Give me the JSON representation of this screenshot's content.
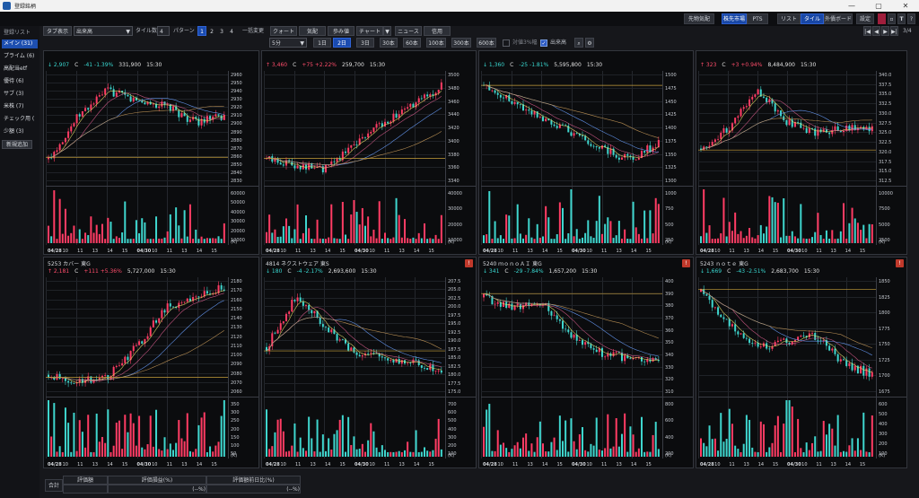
{
  "window": {
    "title": "登録銘柄",
    "minimize": "—",
    "maximize": "▢",
    "close": "✕"
  },
  "topbar": {
    "buttons": [
      "先物気配",
      "株先市場",
      "PTS",
      "リスト",
      "タイル",
      "外債ボード",
      "設定"
    ],
    "active": [
      "株先市場",
      "タイル"
    ],
    "icons": [
      "pen-icon",
      "mail-icon",
      "text-icon",
      "help-icon"
    ]
  },
  "sidebar": {
    "header": "登録リスト",
    "items": [
      "メイン (31)",
      "プライム (6)",
      "高配当etf",
      "優待 (6)",
      "サブ (3)",
      "米株 (7)",
      "チェック用 (",
      "少額 (3)"
    ],
    "active_index": 0,
    "add_button": "新規追加"
  },
  "toolbar": {
    "tab_display": "タブ表示",
    "volume_select": "出来高",
    "tile_count_label": "タイル数",
    "tile_count": "4",
    "pattern_label": "パターン",
    "patterns": [
      "1",
      "2",
      "3",
      "4"
    ],
    "active_pattern": "1",
    "bulk_change": "一括変更",
    "bulk_buttons": [
      "クォート",
      "気配",
      "歩み値",
      "チャート",
      "ニュース",
      "信用"
    ],
    "page_indicator": "3/4",
    "interval_select": "5分",
    "spans": [
      "1日",
      "2日",
      "3日",
      "30本",
      "60本",
      "100本",
      "300本",
      "600本"
    ],
    "active_span": "2日",
    "pct_label": "対値3%幅",
    "volume_check": "出来高"
  },
  "panels": [
    {
      "code": "",
      "name": "",
      "market": "",
      "price": "2,907",
      "mark": "C",
      "change": "-41",
      "pct": "-1.39%",
      "volume": "331,900",
      "time": "15:30",
      "dir": "down",
      "alert": false,
      "yticks": [
        "2960",
        "2950",
        "2940",
        "2930",
        "2920",
        "2910",
        "2900",
        "2890",
        "2880",
        "2870",
        "2860",
        "2850",
        "2840",
        "2830"
      ],
      "vticks": [
        "60000",
        "50000",
        "40000",
        "30000",
        "20000",
        "10000"
      ]
    },
    {
      "code": "",
      "name": "",
      "market": "",
      "price": "3,460",
      "mark": "C",
      "change": "+75",
      "pct": "+2.22%",
      "volume": "259,700",
      "time": "15:30",
      "dir": "up",
      "alert": false,
      "yticks": [
        "3500",
        "3480",
        "3460",
        "3440",
        "3420",
        "3400",
        "3380",
        "3360",
        "3340"
      ],
      "vticks": [
        "40000",
        "30000",
        "20000",
        "10000"
      ]
    },
    {
      "code": "",
      "name": "",
      "market": "",
      "price": "1,360",
      "mark": "C",
      "change": "-25",
      "pct": "-1.81%",
      "volume": "5,595,800",
      "time": "15:30",
      "dir": "down",
      "alert": false,
      "yticks": [
        "1500",
        "1475",
        "1450",
        "1425",
        "1400",
        "1375",
        "1350",
        "1325",
        "1300"
      ],
      "vticks": [
        "1000",
        "750",
        "500",
        "250"
      ]
    },
    {
      "code": "",
      "name": "",
      "market": "",
      "price": "323",
      "mark": "C",
      "change": "+3",
      "pct": "+0.94%",
      "volume": "8,484,900",
      "time": "15:30",
      "dir": "up",
      "alert": false,
      "yticks": [
        "340.0",
        "337.5",
        "335.0",
        "332.5",
        "330.0",
        "327.5",
        "325.0",
        "322.5",
        "320.0",
        "317.5",
        "315.0",
        "312.5"
      ],
      "vticks": [
        "10000",
        "7500",
        "5000",
        "2500"
      ]
    },
    {
      "code": "5253",
      "name": "カバー",
      "market": "東G",
      "price": "2,181",
      "mark": "C",
      "change": "+111",
      "pct": "+5.36%",
      "volume": "5,727,000",
      "time": "15:30",
      "dir": "up",
      "alert": false,
      "yticks": [
        "2180",
        "2170",
        "2160",
        "2150",
        "2140",
        "2130",
        "2120",
        "2110",
        "2100",
        "2090",
        "2080",
        "2070",
        "2060"
      ],
      "vticks": [
        "350",
        "300",
        "250",
        "200",
        "150",
        "100",
        "50"
      ]
    },
    {
      "code": "4814",
      "name": "ネクストウェア",
      "market": "東S",
      "price": "180",
      "mark": "C",
      "change": "-4",
      "pct": "-2.17%",
      "volume": "2,693,600",
      "time": "15:30",
      "dir": "down",
      "alert": true,
      "yticks": [
        "207.5",
        "205.0",
        "202.5",
        "200.0",
        "197.5",
        "195.0",
        "192.5",
        "190.0",
        "187.5",
        "185.0",
        "182.5",
        "180.0",
        "177.5",
        "175.0"
      ],
      "vticks": [
        "700",
        "600",
        "500",
        "400",
        "300",
        "200",
        "100"
      ]
    },
    {
      "code": "5240",
      "name": "ｍｏｎｏＡＩ",
      "market": "東G",
      "price": "341",
      "mark": "C",
      "change": "-29",
      "pct": "-7.84%",
      "volume": "1,657,200",
      "time": "15:30",
      "dir": "down",
      "alert": true,
      "yticks": [
        "400",
        "390",
        "380",
        "370",
        "360",
        "350",
        "340",
        "330",
        "320",
        "310"
      ],
      "vticks": [
        "800",
        "600",
        "400",
        "200"
      ]
    },
    {
      "code": "5243",
      "name": "ｎｏｔｅ",
      "market": "東G",
      "price": "1,669",
      "mark": "C",
      "change": "-43",
      "pct": "-2.51%",
      "volume": "2,683,700",
      "time": "15:30",
      "dir": "down",
      "alert": true,
      "yticks": [
        "1850",
        "1825",
        "1800",
        "1775",
        "1750",
        "1725",
        "1700",
        "1675"
      ],
      "vticks": [
        "600",
        "500",
        "400",
        "300",
        "200",
        "100"
      ]
    }
  ],
  "xlabels": [
    "04/28",
    "10",
    "11",
    "13",
    "14",
    "15",
    "04/30",
    "10",
    "11",
    "13",
    "14",
    "15"
  ],
  "vol_unit": "(K)",
  "arrows": {
    "up": "↑",
    "down": "↓",
    "flat": "→"
  },
  "bottom": {
    "total_label": "合計",
    "headers": [
      "評価額",
      "評価損益(%)",
      "評価額前日比(%)"
    ],
    "values": [
      "",
      "(--%)",
      "(--%)"
    ]
  },
  "colors": {
    "up": "#ff4d6b",
    "down": "#39d7d0",
    "accent": "#1a4bb0"
  }
}
